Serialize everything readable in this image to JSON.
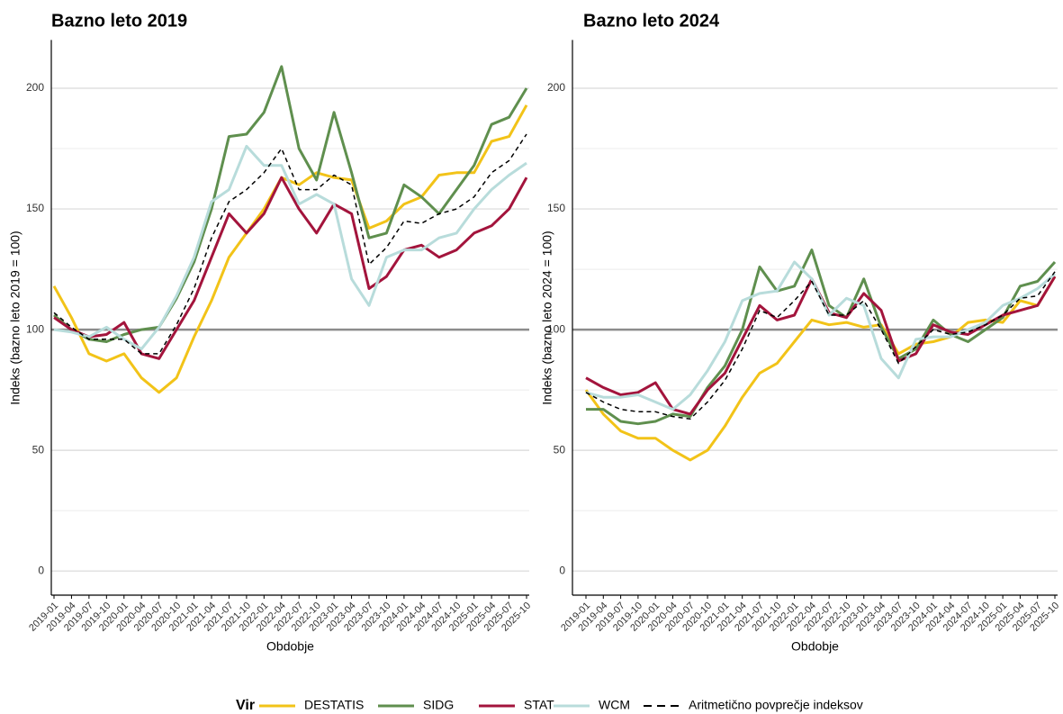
{
  "chart_data": [
    {
      "type": "line",
      "title": "Bazno leto 2019",
      "x_label": "Obdobje",
      "y_label": "Indeks (bazno leto 2019 = 100)",
      "categories": [
        "2019-01",
        "2019-04",
        "2019-07",
        "2019-10",
        "2020-01",
        "2020-04",
        "2020-07",
        "2020-10",
        "2021-01",
        "2021-04",
        "2021-07",
        "2021-10",
        "2022-01",
        "2022-04",
        "2022-07",
        "2022-10",
        "2023-01",
        "2023-04",
        "2023-07",
        "2023-10",
        "2024-01",
        "2024-04",
        "2024-07",
        "2024-10",
        "2025-01",
        "2025-04",
        "2025-07",
        "2025-10"
      ],
      "ylim": [
        -10,
        220
      ],
      "yticks": [
        0,
        50,
        100,
        150,
        200
      ],
      "grid": true,
      "hline": 100,
      "series": [
        {
          "name": "DESTATIS",
          "color": "#f2c318",
          "values": [
            118,
            105,
            90,
            87,
            90,
            80,
            74,
            80,
            97,
            112,
            130,
            140,
            150,
            163,
            160,
            165,
            163,
            162,
            142,
            145,
            152,
            155,
            164,
            165,
            165,
            178,
            180,
            193
          ]
        },
        {
          "name": "SIDG",
          "color": "#5f8f4e",
          "values": [
            106,
            100,
            96,
            95,
            98,
            100,
            101,
            113,
            128,
            150,
            180,
            181,
            190,
            209,
            175,
            162,
            190,
            165,
            138,
            140,
            160,
            155,
            148,
            158,
            168,
            185,
            188,
            200
          ]
        },
        {
          "name": "STAT",
          "color": "#a3143c",
          "values": [
            105,
            100,
            97,
            98,
            103,
            90,
            88,
            100,
            112,
            130,
            148,
            140,
            148,
            163,
            150,
            140,
            152,
            148,
            117,
            122,
            133,
            135,
            130,
            133,
            140,
            143,
            150,
            163
          ]
        },
        {
          "name": "WCM",
          "color": "#b8dcdb",
          "values": [
            100,
            99,
            97,
            101,
            96,
            92,
            101,
            114,
            130,
            153,
            158,
            176,
            168,
            168,
            152,
            156,
            152,
            121,
            110,
            130,
            133,
            133,
            138,
            140,
            150,
            158,
            164,
            169
          ]
        },
        {
          "name": "Aritmetično povprečje indeksov",
          "color": "#000000",
          "dashed": true,
          "values": [
            107,
            101,
            96,
            96,
            96,
            90,
            90,
            102,
            117,
            138,
            153,
            158,
            165,
            175,
            158,
            158,
            164,
            160,
            127,
            134,
            145,
            144,
            148,
            150,
            155,
            165,
            170,
            181
          ]
        }
      ]
    },
    {
      "type": "line",
      "title": "Bazno leto 2024",
      "x_label": "Obdobje",
      "y_label": "Indeks (bazno leto 2024 = 100)",
      "categories": [
        "2019-01",
        "2019-04",
        "2019-07",
        "2019-10",
        "2020-01",
        "2020-04",
        "2020-07",
        "2020-10",
        "2021-01",
        "2021-04",
        "2021-07",
        "2021-10",
        "2022-01",
        "2022-04",
        "2022-07",
        "2022-10",
        "2023-01",
        "2023-04",
        "2023-07",
        "2023-10",
        "2024-01",
        "2024-04",
        "2024-07",
        "2024-10",
        "2025-01",
        "2025-04",
        "2025-07",
        "2025-10"
      ],
      "ylim": [
        -10,
        220
      ],
      "yticks": [
        0,
        50,
        100,
        150,
        200
      ],
      "grid": true,
      "hline": 100,
      "series": [
        {
          "name": "DESTATIS",
          "color": "#f2c318",
          "values": [
            75,
            65,
            58,
            55,
            55,
            50,
            46,
            50,
            60,
            72,
            82,
            86,
            95,
            104,
            102,
            103,
            101,
            102,
            90,
            94,
            95,
            97,
            103,
            104,
            103,
            112,
            110,
            122
          ]
        },
        {
          "name": "SIDG",
          "color": "#5f8f4e",
          "values": [
            67,
            67,
            62,
            61,
            62,
            65,
            64,
            76,
            85,
            100,
            126,
            116,
            118,
            133,
            110,
            105,
            121,
            101,
            88,
            92,
            104,
            98,
            95,
            100,
            105,
            118,
            120,
            128
          ]
        },
        {
          "name": "STAT",
          "color": "#a3143c",
          "values": [
            80,
            76,
            73,
            74,
            78,
            67,
            65,
            75,
            82,
            96,
            110,
            104,
            106,
            121,
            107,
            105,
            115,
            108,
            87,
            90,
            102,
            99,
            98,
            102,
            106,
            108,
            110,
            122
          ]
        },
        {
          "name": "WCM",
          "color": "#b8dcdb",
          "values": [
            74,
            72,
            72,
            73,
            70,
            67,
            73,
            83,
            95,
            112,
            115,
            116,
            128,
            121,
            106,
            113,
            110,
            88,
            80,
            96,
            97,
            97,
            100,
            103,
            110,
            113,
            117,
            123
          ]
        },
        {
          "name": "Aritmetično povprečje indeksov",
          "color": "#000000",
          "dashed": true,
          "values": [
            74,
            70,
            67,
            66,
            66,
            64,
            63,
            70,
            79,
            92,
            108,
            105,
            112,
            120,
            106,
            106,
            112,
            100,
            86,
            93,
            100,
            98,
            99,
            102,
            106,
            113,
            114,
            124
          ]
        }
      ]
    }
  ],
  "legend": {
    "title": "Vir"
  }
}
